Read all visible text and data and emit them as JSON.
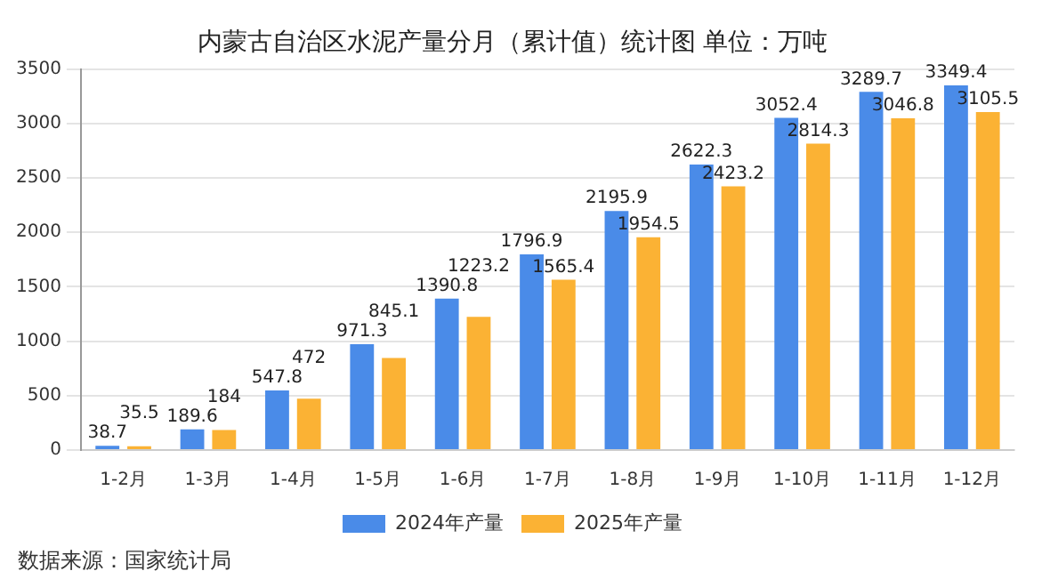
{
  "chart_data": {
    "type": "bar",
    "title": "内蒙古自治区水泥产量分月（累计值）统计图 单位：万吨",
    "categories": [
      "1-2月",
      "1-3月",
      "1-4月",
      "1-5月",
      "1-6月",
      "1-7月",
      "1-8月",
      "1-9月",
      "1-10月",
      "1-11月",
      "1-12月"
    ],
    "series": [
      {
        "name": "2024年产量",
        "color": "#4a8be8",
        "values": [
          38.7,
          189.6,
          547.8,
          971.3,
          1390.8,
          1796.9,
          2195.9,
          2622.3,
          3052.4,
          3289.7,
          3349.4
        ]
      },
      {
        "name": "2025年产量",
        "color": "#fbb234",
        "values": [
          35.5,
          184,
          472,
          845.1,
          1223.2,
          1565.4,
          1954.5,
          2423.2,
          2814.3,
          3046.8,
          3105.5
        ]
      }
    ],
    "ylim": [
      0,
      3500
    ],
    "yticks": [
      0,
      500,
      1000,
      1500,
      2000,
      2500,
      3000,
      3500
    ],
    "grid": "y",
    "legend": "bottom",
    "data_labels": true,
    "annotations": [
      "数据来源：国家统计局"
    ]
  }
}
